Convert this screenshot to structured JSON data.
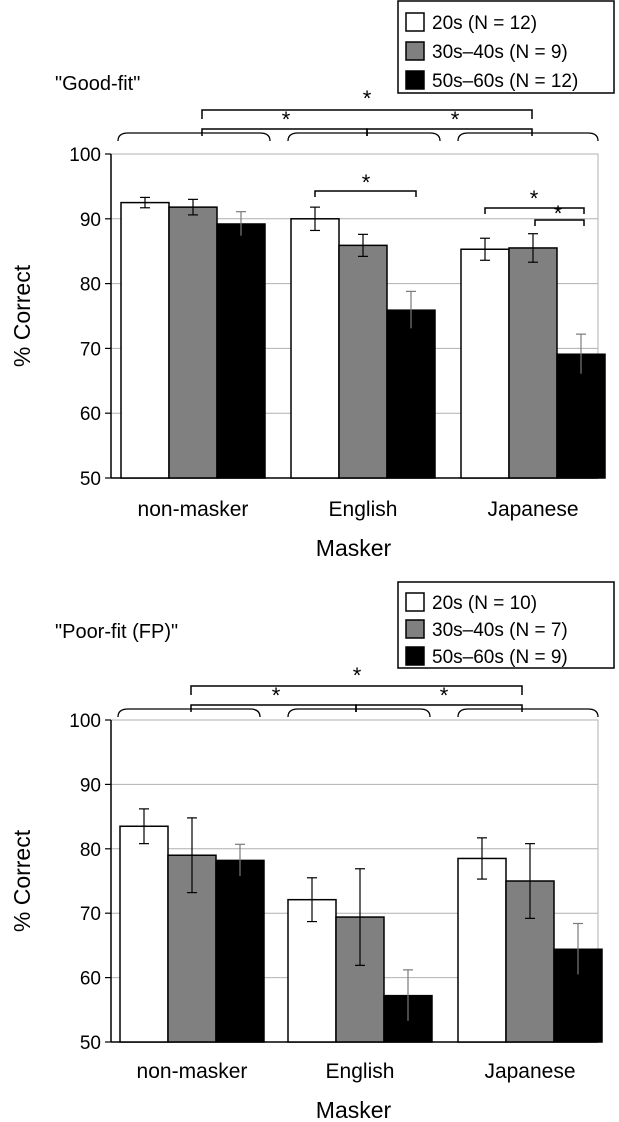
{
  "chart_data": [
    {
      "type": "bar",
      "title": "\"Good-fit\"",
      "xlabel": "Masker",
      "ylabel": "% Correct",
      "ylim": [
        50,
        100
      ],
      "yticks": [
        "50",
        "60",
        "70",
        "80",
        "90",
        "100"
      ],
      "categories": [
        "non-masker",
        "English",
        "Japanese"
      ],
      "grid": true,
      "legend_position": "top-right",
      "series": [
        {
          "name": "20s (N = 12)",
          "color": "#ffffff",
          "values": [
            92.5,
            90,
            85.3
          ],
          "errors": [
            0.8,
            1.8,
            1.7
          ]
        },
        {
          "name": "30s–40s (N = 9)",
          "color": "#808080",
          "values": [
            91.8,
            85.9,
            85.5
          ],
          "errors": [
            1.2,
            1.7,
            2.2
          ]
        },
        {
          "name": "50s–60s (N = 12)",
          "color": "#000000",
          "values": [
            89.2,
            75.9,
            69.1
          ],
          "errors": [
            1.9,
            2.9,
            3.1
          ]
        }
      ],
      "annotations": [
        "*",
        "*",
        "*",
        "*",
        "*",
        "*"
      ]
    },
    {
      "type": "bar",
      "title": "\"Poor-fit (FP)\"",
      "xlabel": "Masker",
      "ylabel": "% Correct",
      "ylim": [
        50,
        100
      ],
      "yticks": [
        "50",
        "60",
        "70",
        "80",
        "90",
        "100"
      ],
      "categories": [
        "non-masker",
        "English",
        "Japanese"
      ],
      "grid": true,
      "legend_position": "top-right",
      "series": [
        {
          "name": "20s (N = 10)",
          "color": "#ffffff",
          "values": [
            83.5,
            72.1,
            78.5
          ],
          "errors": [
            2.7,
            3.4,
            3.2
          ]
        },
        {
          "name": "30s–40s (N = 7)",
          "color": "#808080",
          "values": [
            79,
            69.4,
            75
          ],
          "errors": [
            5.8,
            7.5,
            5.8
          ]
        },
        {
          "name": "50s–60s (N = 9)",
          "color": "#000000",
          "values": [
            78.2,
            57.2,
            64.4
          ],
          "errors": [
            2.5,
            4,
            4
          ]
        }
      ],
      "annotations": [
        "*",
        "*",
        "*"
      ]
    }
  ]
}
